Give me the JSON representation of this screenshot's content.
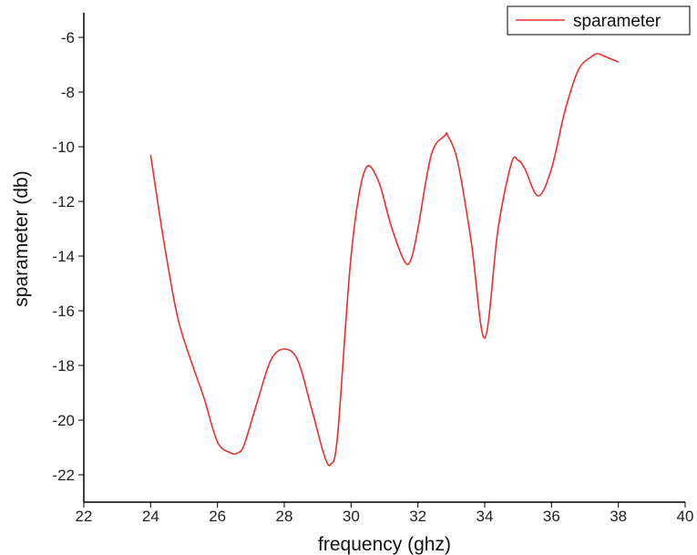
{
  "chart_data": {
    "type": "line",
    "title": "",
    "xlabel": "frequency (ghz)",
    "ylabel": "sparameter (db)",
    "xlim": [
      22,
      40
    ],
    "ylim": [
      -23,
      -5.1
    ],
    "xticks": [
      22,
      24,
      26,
      28,
      30,
      32,
      34,
      36,
      38,
      40
    ],
    "yticks": [
      -22,
      -20,
      -18,
      -16,
      -14,
      -12,
      -10,
      -8,
      -6
    ],
    "x_tick_labels": [
      "22",
      "24",
      "26",
      "28",
      "30",
      "32",
      "34",
      "36",
      "38",
      "40"
    ],
    "y_tick_labels": [
      "-22",
      "-20",
      "-18",
      "-16",
      "-14",
      "-12",
      "-10",
      "-8",
      "-6"
    ],
    "grid": false,
    "legend": {
      "position": "top-right",
      "entries": [
        "sparameter"
      ]
    },
    "series": [
      {
        "name": "sparameter",
        "color": "#e8312f",
        "x": [
          24.0,
          24.4,
          24.8,
          25.2,
          25.6,
          26.0,
          26.4,
          26.6,
          26.8,
          27.2,
          27.6,
          28.0,
          28.4,
          28.8,
          29.2,
          29.4,
          29.6,
          30.0,
          30.4,
          30.8,
          31.2,
          31.6,
          31.8,
          32.0,
          32.4,
          32.8,
          32.9,
          33.2,
          33.6,
          34.0,
          34.4,
          34.8,
          35.0,
          35.2,
          35.6,
          36.0,
          36.4,
          36.8,
          37.2,
          37.4,
          37.6,
          38.0
        ],
        "y": [
          -10.3,
          -13.5,
          -16.2,
          -17.8,
          -19.2,
          -20.8,
          -21.2,
          -21.2,
          -20.9,
          -19.3,
          -17.8,
          -17.4,
          -17.8,
          -19.5,
          -21.3,
          -21.6,
          -20.5,
          -14.0,
          -10.9,
          -11.2,
          -12.9,
          -14.2,
          -14.1,
          -13.0,
          -10.3,
          -9.6,
          -9.6,
          -10.6,
          -13.5,
          -17.0,
          -13.0,
          -10.6,
          -10.5,
          -10.8,
          -11.8,
          -10.8,
          -8.7,
          -7.2,
          -6.7,
          -6.6,
          -6.7,
          -6.9
        ]
      }
    ]
  }
}
